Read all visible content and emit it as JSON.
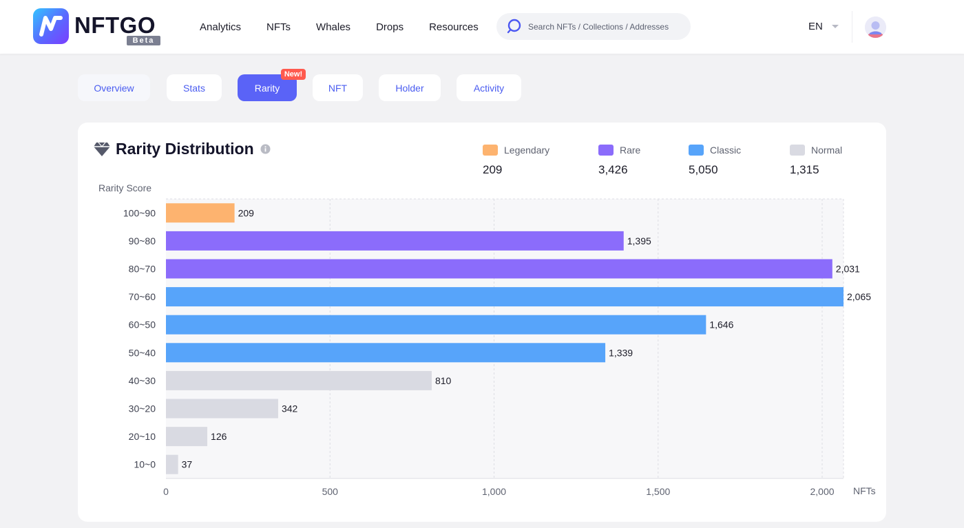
{
  "brand": {
    "name": "NFTGO",
    "badge": "Beta"
  },
  "nav": {
    "items": [
      "Analytics",
      "NFTs",
      "Whales",
      "Drops",
      "Resources"
    ]
  },
  "search": {
    "placeholder": "Search NFTs / Collections / Addresses"
  },
  "language": {
    "current": "EN"
  },
  "tabs": {
    "items": [
      "Overview",
      "Stats",
      "Rarity",
      "NFT",
      "Holder",
      "Activity"
    ],
    "active": "Rarity",
    "new_badge": "New!"
  },
  "card": {
    "title": "Rarity Distribution"
  },
  "legend": [
    {
      "label": "Legendary",
      "value": "209",
      "color": "#fdb36f"
    },
    {
      "label": "Rare",
      "value": "3,426",
      "color": "#8b6cfb"
    },
    {
      "label": "Classic",
      "value": "5,050",
      "color": "#57a4fa"
    },
    {
      "label": "Normal",
      "value": "1,315",
      "color": "#d9dae2"
    }
  ],
  "chart_data": {
    "type": "bar",
    "orientation": "horizontal",
    "title": "Rarity Distribution",
    "ylabel": "Rarity Score",
    "xlabel": "NFTs",
    "xlim": [
      0,
      2065
    ],
    "xticks": [
      0,
      500,
      1000,
      1500,
      2000
    ],
    "xtick_labels": [
      "0",
      "500",
      "1,000",
      "1,500",
      "2,000"
    ],
    "grid": true,
    "categories": [
      "100~90",
      "90~80",
      "80~70",
      "70~60",
      "60~50",
      "50~40",
      "40~30",
      "30~20",
      "20~10",
      "10~0"
    ],
    "values": [
      209,
      1395,
      2031,
      2065,
      1646,
      1339,
      810,
      342,
      126,
      37
    ],
    "value_labels": [
      "209",
      "1,395",
      "2,031",
      "2,065",
      "1,646",
      "1,339",
      "810",
      "342",
      "126",
      "37"
    ],
    "tiers": [
      "Legendary",
      "Rare",
      "Rare",
      "Classic",
      "Classic",
      "Classic",
      "Normal",
      "Normal",
      "Normal",
      "Normal"
    ]
  }
}
